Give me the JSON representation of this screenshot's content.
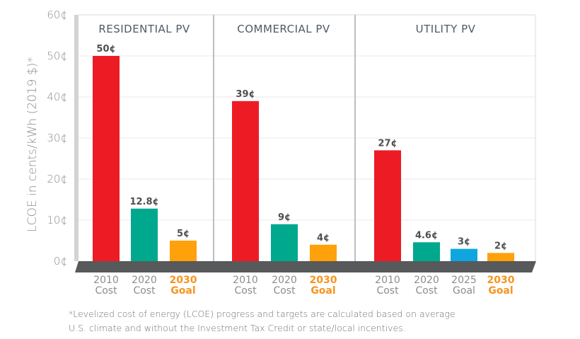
{
  "chart_data": {
    "type": "bar",
    "title": "",
    "xlabel": "",
    "ylabel": "LCOE in cents/kWh (2019 $)*",
    "ylim": [
      0,
      60
    ],
    "yticks": [
      0,
      10,
      20,
      30,
      40,
      50,
      60
    ],
    "ytick_labels": [
      "0¢",
      "10¢",
      "20¢",
      "30¢",
      "40¢",
      "50¢",
      "60¢"
    ],
    "grid": true,
    "unit_suffix": "¢",
    "colors": {
      "2010 Cost": "#ed1c24",
      "2020 Cost": "#00a88e",
      "2025 Goal": "#0ea5e0",
      "2030 Goal": "#ffa10a",
      "base": "#58595b",
      "wall": "#d1d3d4",
      "divider": "#bcbec0",
      "grid": "#eeeeee",
      "goal_label": "#f7941d"
    },
    "groups": [
      {
        "title": "RESIDENTIAL PV",
        "bars": [
          {
            "year": "2010",
            "kind": "Cost",
            "value": 50,
            "label": "50¢",
            "color_key": "2010 Cost"
          },
          {
            "year": "2020",
            "kind": "Cost",
            "value": 12.8,
            "label": "12.8¢",
            "color_key": "2020 Cost"
          },
          {
            "year": "2030",
            "kind": "Goal",
            "value": 5,
            "label": "5¢",
            "color_key": "2030 Goal"
          }
        ]
      },
      {
        "title": "COMMERCIAL PV",
        "bars": [
          {
            "year": "2010",
            "kind": "Cost",
            "value": 39,
            "label": "39¢",
            "color_key": "2010 Cost"
          },
          {
            "year": "2020",
            "kind": "Cost",
            "value": 9,
            "label": "9¢",
            "color_key": "2020 Cost"
          },
          {
            "year": "2030",
            "kind": "Goal",
            "value": 4,
            "label": "4¢",
            "color_key": "2030 Goal"
          }
        ]
      },
      {
        "title": "UTILITY PV",
        "bars": [
          {
            "year": "2010",
            "kind": "Cost",
            "value": 27,
            "label": "27¢",
            "color_key": "2010 Cost"
          },
          {
            "year": "2020",
            "kind": "Cost",
            "value": 4.6,
            "label": "4.6¢",
            "color_key": "2020 Cost"
          },
          {
            "year": "2025",
            "kind": "Goal",
            "value": 3,
            "label": "3¢",
            "color_key": "2025 Goal"
          },
          {
            "year": "2030",
            "kind": "Goal",
            "value": 2,
            "label": "2¢",
            "color_key": "2030 Goal"
          }
        ]
      }
    ]
  },
  "footnote": {
    "line1": "*Levelized cost of energy (LCOE) progress and targets are calculated based on average",
    "line2": "U.S. climate and without the Investment Tax Credit or state/local incentives."
  }
}
